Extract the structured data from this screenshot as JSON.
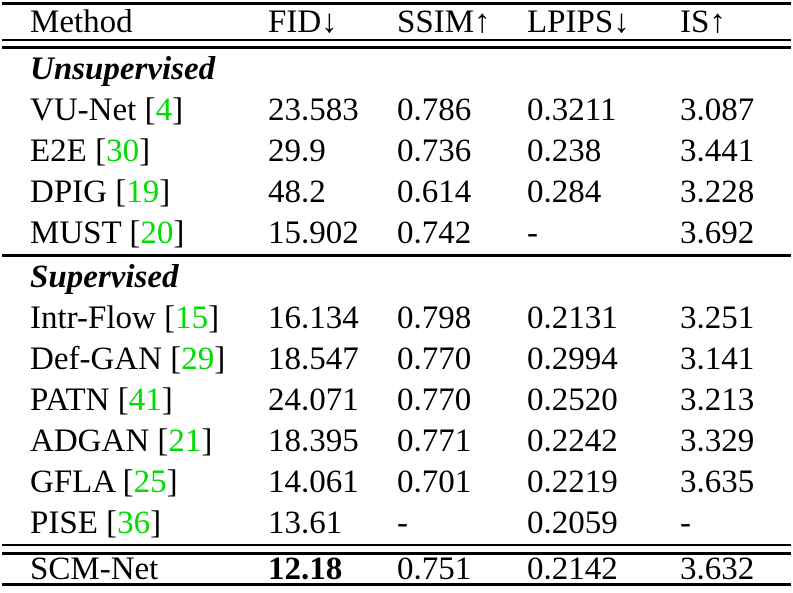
{
  "colors": {
    "citation_green": "#00dd00",
    "text_black": "#000000",
    "background": "#ffffff"
  },
  "table": {
    "columns": [
      {
        "key": "method",
        "label": "Method"
      },
      {
        "key": "fid",
        "label": "FID↓"
      },
      {
        "key": "ssim",
        "label": "SSIM↑"
      },
      {
        "key": "lpips",
        "label": "LPIPS↓"
      },
      {
        "key": "is",
        "label": "IS↑"
      }
    ],
    "rows": [
      {
        "method": "Unsupervised",
        "type": "section"
      },
      {
        "method": "VU-Net",
        "cite_open": " [",
        "cite": "4",
        "cite_close": "]",
        "fid": "23.583",
        "ssim": "0.786",
        "lpips": "0.3211",
        "is": "3.087"
      },
      {
        "method": "E2E",
        "cite_open": " [",
        "cite": "30",
        "cite_close": "]",
        "fid": "29.9",
        "ssim": "0.736",
        "lpips": "0.238",
        "is": "3.441"
      },
      {
        "method": "DPIG",
        "cite_open": " [",
        "cite": "19",
        "cite_close": "]",
        "fid": "48.2",
        "ssim": "0.614",
        "lpips": "0.284",
        "is": "3.228"
      },
      {
        "method": "MUST",
        "cite_open": " [",
        "cite": "20",
        "cite_close": "]",
        "fid": "15.902",
        "ssim": "0.742",
        "lpips": "-",
        "is": "3.692"
      },
      {
        "method": "Supervised",
        "type": "section"
      },
      {
        "method": "Intr-Flow",
        "cite_open": " [",
        "cite": "15",
        "cite_close": "]",
        "fid": "16.134",
        "ssim": "0.798",
        "lpips": "0.2131",
        "is": "3.251"
      },
      {
        "method": "Def-GAN",
        "cite_open": " [",
        "cite": "29",
        "cite_close": "]",
        "fid": "18.547",
        "ssim": "0.770",
        "lpips": "0.2994",
        "is": "3.141"
      },
      {
        "method": "PATN",
        "cite_open": " [",
        "cite": "41",
        "cite_close": "]",
        "fid": "24.071",
        "ssim": "0.770",
        "lpips": "0.2520",
        "is": "3.213"
      },
      {
        "method": "ADGAN",
        "cite_open": " [",
        "cite": "21",
        "cite_close": "]",
        "fid": "18.395",
        "ssim": "0.771",
        "lpips": "0.2242",
        "is": "3.329"
      },
      {
        "method": "GFLA",
        "cite_open": " [",
        "cite": "25",
        "cite_close": "]",
        "fid": "14.061",
        "ssim": "0.701",
        "lpips": "0.2219",
        "is": "3.635"
      },
      {
        "method": "PISE",
        "cite_open": " [",
        "cite": "36",
        "cite_close": "]",
        "fid": "13.61",
        "ssim": "-",
        "lpips": "0.2059",
        "is": "-"
      },
      {
        "method": "SCM-Net",
        "fid": "12.18",
        "ssim": "0.751",
        "lpips": "0.2142",
        "is": "3.632",
        "fid_bold": true
      }
    ]
  }
}
